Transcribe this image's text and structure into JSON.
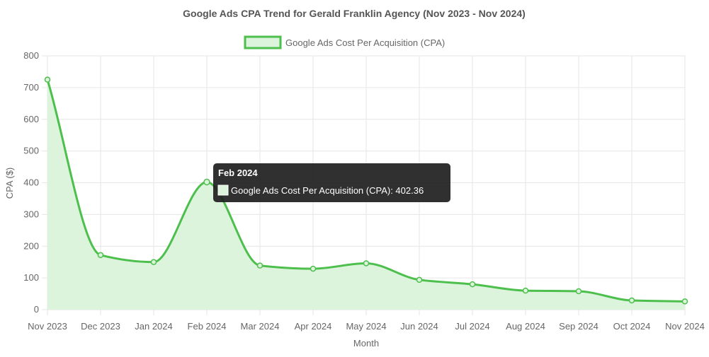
{
  "chart_data": {
    "type": "area",
    "title": "Google Ads CPA Trend for Gerald Franklin Agency (Nov 2023 - Nov 2024)",
    "xlabel": "Month",
    "ylabel": "CPA ($)",
    "ylim": [
      0,
      800
    ],
    "y_ticks": [
      "0",
      "100",
      "200",
      "300",
      "400",
      "500",
      "600",
      "700",
      "800"
    ],
    "grid": true,
    "legend_position": "top",
    "categories": [
      "Nov 2023",
      "Dec 2023",
      "Jan 2024",
      "Feb 2024",
      "Mar 2024",
      "Apr 2024",
      "May 2024",
      "Jun 2024",
      "Jul 2024",
      "Aug 2024",
      "Sep 2024",
      "Oct 2024",
      "Nov 2024"
    ],
    "series": [
      {
        "name": "Google Ads Cost Per Acquisition (CPA)",
        "values": [
          725,
          172,
          150,
          402.36,
          139,
          129,
          146,
          94,
          80,
          60,
          58,
          29,
          26
        ],
        "line_color": "#4cbf4c",
        "fill_color": "#dcf3dc"
      }
    ],
    "tooltip": {
      "title": "Feb 2024",
      "label": "Google Ads Cost Per Acquisition (CPA): 402.36",
      "active_index": 3
    }
  }
}
